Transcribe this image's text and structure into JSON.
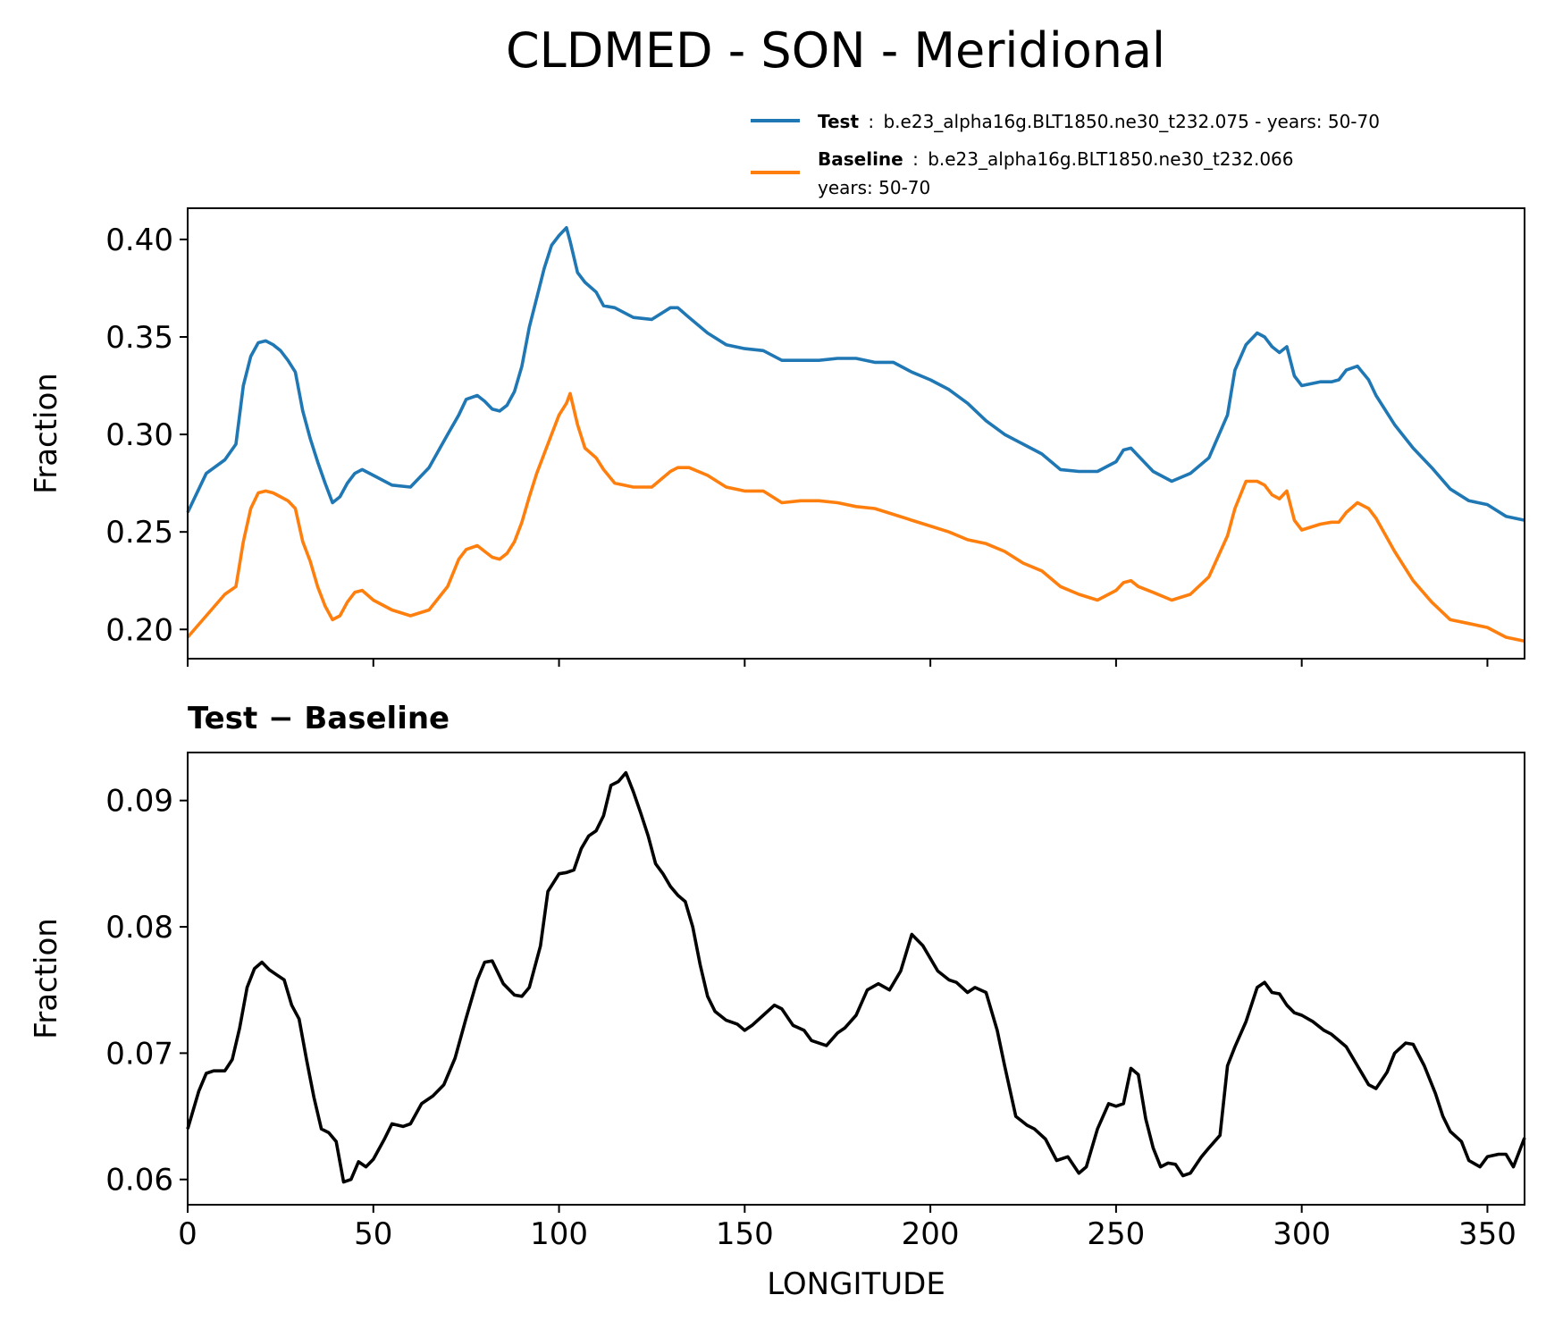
{
  "figure": {
    "title": "CLDMED - SON - Meridional"
  },
  "legend": {
    "placement": "top-right",
    "entries": [
      {
        "key": "test",
        "bold": "Test",
        "sep": ":",
        "text": "b.e23_alpha16g.BLT1850.ne30_t232.075 - years: 50-70",
        "text2": ""
      },
      {
        "key": "baseline",
        "bold": "Baseline",
        "sep": ":",
        "text": "b.e23_alpha16g.BLT1850.ne30_t232.066",
        "text2": "years: 50-70"
      }
    ]
  },
  "colors": {
    "test": "#1f77b4",
    "baseline": "#ff7f0e",
    "diff": "#000000"
  },
  "chart_data": [
    {
      "type": "line",
      "title": "",
      "xlabel": "",
      "ylabel": "Fraction",
      "xlim": [
        0,
        360
      ],
      "ylim": [
        0.185,
        0.416
      ],
      "xticks": [
        0,
        50,
        100,
        150,
        200,
        250,
        300,
        350
      ],
      "show_xticklabels": false,
      "yticks": [
        0.2,
        0.25,
        0.3,
        0.35,
        0.4
      ],
      "ytick_labels": [
        "0.20",
        "0.25",
        "0.30",
        "0.35",
        "0.40"
      ],
      "grid": false,
      "series": [
        {
          "name": "Test",
          "color": "#1f77b4",
          "x": [
            0,
            5,
            10,
            13,
            15,
            17,
            19,
            21,
            23,
            25,
            27,
            29,
            31,
            33,
            35,
            37,
            39,
            41,
            43,
            45,
            47,
            50,
            55,
            60,
            65,
            70,
            73,
            75,
            78,
            80,
            82,
            84,
            86,
            88,
            90,
            92,
            94,
            96,
            98,
            100,
            102,
            103,
            105,
            107,
            110,
            112,
            115,
            120,
            125,
            130,
            132,
            135,
            140,
            145,
            150,
            155,
            160,
            165,
            170,
            175,
            180,
            185,
            190,
            195,
            200,
            205,
            210,
            215,
            220,
            225,
            230,
            235,
            240,
            245,
            250,
            252,
            254,
            256,
            260,
            265,
            270,
            275,
            280,
            282,
            285,
            288,
            290,
            292,
            294,
            296,
            298,
            300,
            305,
            308,
            310,
            312,
            315,
            318,
            320,
            325,
            330,
            335,
            340,
            345,
            350,
            355,
            360
          ],
          "values": [
            0.26,
            0.28,
            0.287,
            0.295,
            0.325,
            0.34,
            0.347,
            0.348,
            0.346,
            0.343,
            0.338,
            0.332,
            0.312,
            0.298,
            0.286,
            0.275,
            0.265,
            0.268,
            0.275,
            0.28,
            0.282,
            0.279,
            0.274,
            0.273,
            0.283,
            0.3,
            0.31,
            0.318,
            0.32,
            0.317,
            0.313,
            0.312,
            0.315,
            0.322,
            0.335,
            0.355,
            0.37,
            0.385,
            0.397,
            0.402,
            0.406,
            0.399,
            0.383,
            0.378,
            0.373,
            0.366,
            0.365,
            0.36,
            0.359,
            0.365,
            0.365,
            0.36,
            0.352,
            0.346,
            0.344,
            0.343,
            0.338,
            0.338,
            0.338,
            0.339,
            0.339,
            0.337,
            0.337,
            0.332,
            0.328,
            0.323,
            0.316,
            0.307,
            0.3,
            0.295,
            0.29,
            0.282,
            0.281,
            0.281,
            0.286,
            0.292,
            0.293,
            0.289,
            0.281,
            0.276,
            0.28,
            0.288,
            0.31,
            0.333,
            0.346,
            0.352,
            0.35,
            0.345,
            0.342,
            0.345,
            0.33,
            0.325,
            0.327,
            0.327,
            0.328,
            0.333,
            0.335,
            0.328,
            0.32,
            0.305,
            0.293,
            0.283,
            0.272,
            0.266,
            0.264,
            0.258,
            0.256
          ]
        },
        {
          "name": "Baseline",
          "color": "#ff7f0e",
          "x": [
            0,
            5,
            10,
            13,
            15,
            17,
            19,
            21,
            23,
            25,
            27,
            29,
            31,
            33,
            35,
            37,
            39,
            41,
            43,
            45,
            47,
            50,
            55,
            60,
            65,
            70,
            73,
            75,
            78,
            80,
            82,
            84,
            86,
            88,
            90,
            92,
            94,
            96,
            98,
            100,
            102,
            103,
            105,
            107,
            110,
            112,
            115,
            120,
            125,
            130,
            132,
            135,
            140,
            145,
            150,
            155,
            160,
            165,
            170,
            175,
            180,
            185,
            190,
            195,
            200,
            205,
            210,
            215,
            220,
            225,
            230,
            235,
            240,
            245,
            250,
            252,
            254,
            256,
            260,
            265,
            270,
            275,
            280,
            282,
            285,
            288,
            290,
            292,
            294,
            296,
            298,
            300,
            305,
            308,
            310,
            312,
            315,
            318,
            320,
            325,
            330,
            335,
            340,
            345,
            350,
            355,
            360
          ],
          "values": [
            0.196,
            0.207,
            0.218,
            0.222,
            0.245,
            0.262,
            0.27,
            0.271,
            0.27,
            0.268,
            0.266,
            0.262,
            0.245,
            0.235,
            0.222,
            0.212,
            0.205,
            0.207,
            0.214,
            0.219,
            0.22,
            0.215,
            0.21,
            0.207,
            0.21,
            0.222,
            0.236,
            0.241,
            0.243,
            0.24,
            0.237,
            0.236,
            0.239,
            0.245,
            0.255,
            0.268,
            0.28,
            0.29,
            0.3,
            0.31,
            0.316,
            0.321,
            0.305,
            0.293,
            0.288,
            0.282,
            0.275,
            0.273,
            0.273,
            0.281,
            0.283,
            0.283,
            0.279,
            0.273,
            0.271,
            0.271,
            0.265,
            0.266,
            0.266,
            0.265,
            0.263,
            0.262,
            0.259,
            0.256,
            0.253,
            0.25,
            0.246,
            0.244,
            0.24,
            0.234,
            0.23,
            0.222,
            0.218,
            0.215,
            0.22,
            0.224,
            0.225,
            0.222,
            0.219,
            0.215,
            0.218,
            0.227,
            0.248,
            0.262,
            0.276,
            0.276,
            0.274,
            0.269,
            0.267,
            0.271,
            0.256,
            0.251,
            0.254,
            0.255,
            0.255,
            0.26,
            0.265,
            0.262,
            0.257,
            0.24,
            0.225,
            0.214,
            0.205,
            0.203,
            0.201,
            0.196,
            0.194
          ]
        }
      ]
    },
    {
      "type": "line",
      "title": "Test − Baseline",
      "xlabel": "LONGITUDE",
      "ylabel": "Fraction",
      "xlim": [
        0,
        360
      ],
      "ylim": [
        0.058,
        0.0938
      ],
      "xticks": [
        0,
        50,
        100,
        150,
        200,
        250,
        300,
        350
      ],
      "xtick_labels": [
        "0",
        "50",
        "100",
        "150",
        "200",
        "250",
        "300",
        "350"
      ],
      "show_xticklabels": true,
      "yticks": [
        0.06,
        0.07,
        0.08,
        0.09
      ],
      "ytick_labels": [
        "0.06",
        "0.07",
        "0.08",
        "0.09"
      ],
      "grid": false,
      "series": [
        {
          "name": "Test − Baseline",
          "color": "#000000",
          "x": [
            0,
            3,
            5,
            7,
            10,
            12,
            14,
            16,
            18,
            20,
            22,
            24,
            26,
            28,
            30,
            32,
            34,
            36,
            38,
            40,
            42,
            44,
            46,
            48,
            50,
            53,
            55,
            58,
            60,
            63,
            66,
            69,
            72,
            75,
            78,
            80,
            82,
            85,
            88,
            90,
            92,
            95,
            97,
            100,
            102,
            104,
            106,
            108,
            110,
            112,
            114,
            116,
            118,
            120,
            122,
            124,
            126,
            128,
            130,
            132,
            134,
            136,
            138,
            140,
            142,
            145,
            148,
            150,
            152,
            155,
            158,
            160,
            163,
            166,
            168,
            172,
            175,
            177,
            180,
            183,
            186,
            189,
            192,
            195,
            198,
            202,
            205,
            207,
            210,
            212,
            215,
            218,
            220,
            223,
            226,
            228,
            231,
            234,
            237,
            240,
            242,
            245,
            248,
            250,
            252,
            254,
            256,
            258,
            260,
            262,
            264,
            266,
            268,
            270,
            273,
            275,
            278,
            280,
            282,
            285,
            288,
            290,
            292,
            294,
            296,
            298,
            300,
            303,
            306,
            308,
            310,
            312,
            315,
            318,
            320,
            323,
            325,
            328,
            330,
            333,
            336,
            338,
            340,
            343,
            345,
            348,
            350,
            353,
            355,
            357,
            360
          ],
          "values": [
            0.064,
            0.067,
            0.0684,
            0.0686,
            0.0686,
            0.0695,
            0.072,
            0.0752,
            0.0767,
            0.0772,
            0.0766,
            0.0762,
            0.0758,
            0.0738,
            0.0727,
            0.0695,
            0.0665,
            0.064,
            0.0637,
            0.063,
            0.0598,
            0.06,
            0.0614,
            0.061,
            0.0616,
            0.0632,
            0.0644,
            0.0642,
            0.0644,
            0.066,
            0.0666,
            0.0675,
            0.0696,
            0.0728,
            0.0758,
            0.0772,
            0.0773,
            0.0755,
            0.0746,
            0.0745,
            0.0752,
            0.0785,
            0.0828,
            0.0842,
            0.0843,
            0.0845,
            0.0862,
            0.0872,
            0.0876,
            0.0888,
            0.0912,
            0.0915,
            0.0922,
            0.0907,
            0.089,
            0.0872,
            0.085,
            0.0842,
            0.0832,
            0.0825,
            0.082,
            0.08,
            0.077,
            0.0745,
            0.0733,
            0.0726,
            0.0723,
            0.0718,
            0.0722,
            0.073,
            0.0738,
            0.0735,
            0.0722,
            0.0718,
            0.071,
            0.0706,
            0.0716,
            0.072,
            0.073,
            0.075,
            0.0755,
            0.075,
            0.0765,
            0.0794,
            0.0785,
            0.0765,
            0.0758,
            0.0756,
            0.0748,
            0.0752,
            0.0748,
            0.0718,
            0.069,
            0.065,
            0.0643,
            0.064,
            0.0632,
            0.0615,
            0.0618,
            0.0605,
            0.061,
            0.064,
            0.066,
            0.0658,
            0.066,
            0.0688,
            0.0683,
            0.0648,
            0.0625,
            0.061,
            0.0613,
            0.0612,
            0.0603,
            0.0605,
            0.0618,
            0.0625,
            0.0635,
            0.069,
            0.0705,
            0.0725,
            0.0752,
            0.0756,
            0.0748,
            0.0747,
            0.0738,
            0.0732,
            0.073,
            0.0725,
            0.0718,
            0.0715,
            0.071,
            0.0705,
            0.069,
            0.0675,
            0.0672,
            0.0685,
            0.07,
            0.0708,
            0.0707,
            0.069,
            0.0668,
            0.065,
            0.0638,
            0.063,
            0.0615,
            0.061,
            0.0618,
            0.062,
            0.062,
            0.061,
            0.0633
          ]
        }
      ]
    }
  ]
}
